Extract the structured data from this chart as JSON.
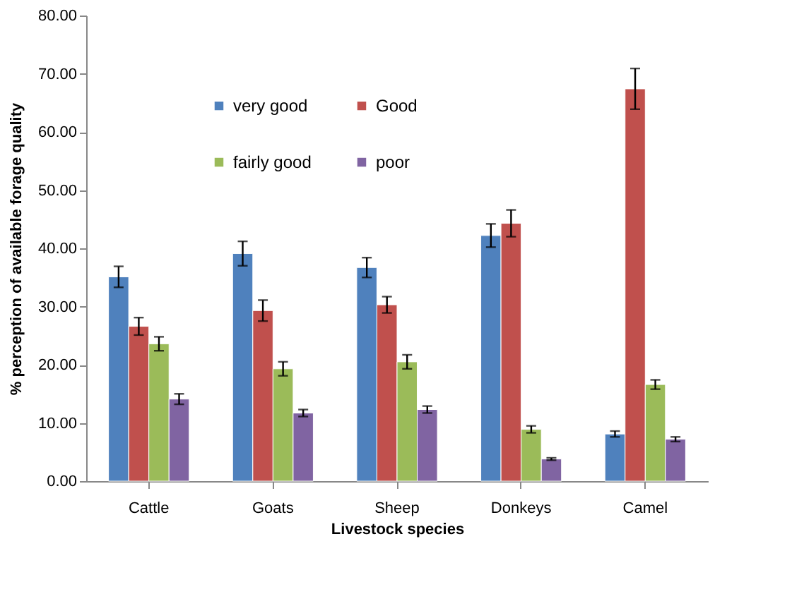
{
  "chart_data": {
    "type": "bar",
    "xlabel": "Livestock species",
    "ylabel": "% perception of available  forage quality",
    "categories": [
      "Cattle",
      "Goats",
      "Sheep",
      "Donkeys",
      "Camel"
    ],
    "series": [
      {
        "name": "very good",
        "color": "#4f81bd",
        "values": [
          35.1,
          39.1,
          36.7,
          42.2,
          8.1
        ],
        "errors": [
          1.8,
          2.1,
          1.7,
          2.0,
          0.5
        ]
      },
      {
        "name": "Good",
        "color": "#c0504d",
        "values": [
          26.6,
          29.3,
          30.3,
          44.3,
          67.4
        ],
        "errors": [
          1.5,
          1.8,
          1.4,
          2.3,
          3.5
        ]
      },
      {
        "name": "fairly good",
        "color": "#9bbb59",
        "values": [
          23.6,
          19.3,
          20.5,
          8.9,
          16.6
        ],
        "errors": [
          1.2,
          1.2,
          1.2,
          0.6,
          0.8
        ]
      },
      {
        "name": "poor",
        "color": "#8064a2",
        "values": [
          14.1,
          11.7,
          12.3,
          3.8,
          7.2
        ],
        "errors": [
          0.9,
          0.6,
          0.6,
          0.2,
          0.4
        ]
      }
    ],
    "ylim": [
      0,
      80
    ],
    "yticks": [
      {
        "value": 0,
        "label": "0.00"
      },
      {
        "value": 10,
        "label": "10.00"
      },
      {
        "value": 20,
        "label": "20.00"
      },
      {
        "value": 30,
        "label": "30.00"
      },
      {
        "value": 40,
        "label": "40.00"
      },
      {
        "value": 50,
        "label": "50.00"
      },
      {
        "value": 60,
        "label": "60.00"
      },
      {
        "value": 70,
        "label": "70.00"
      },
      {
        "value": 80,
        "label": "80.00"
      }
    ],
    "grid": false,
    "legend": "top left"
  }
}
